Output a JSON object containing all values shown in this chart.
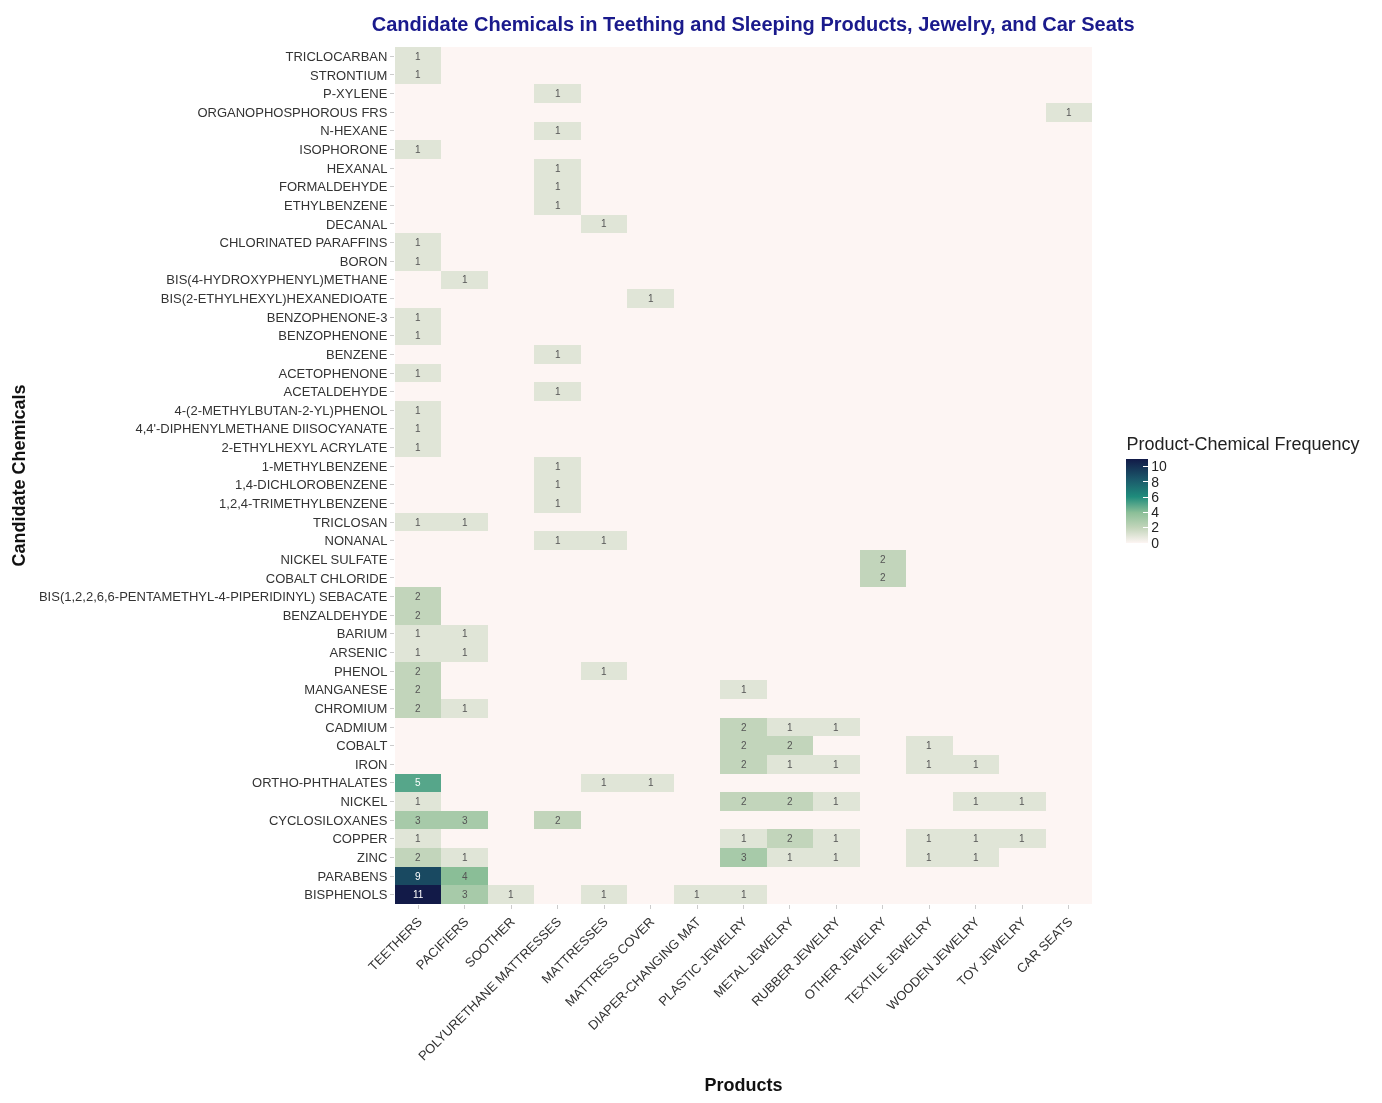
{
  "chart_data": {
    "type": "heatmap",
    "title": "Candidate Chemicals in Teething and Sleeping Products, Jewelry, and Car Seats",
    "xlabel": "Products",
    "ylabel": "Candidate Chemicals",
    "clabel": "Product-Chemical Frequency",
    "clim": [
      0,
      11
    ],
    "cticks": [
      0,
      2,
      4,
      6,
      8,
      10
    ],
    "data_labels": true,
    "categories": [
      "TEETHERS",
      "PACIFIERS",
      "SOOTHER",
      "POLYURETHANE MATTRESSES",
      "MATTRESSES",
      "MATTRESS COVER",
      "DIAPER-CHANGING MAT",
      "PLASTIC JEWELRY",
      "METAL JEWELRY",
      "RUBBER JEWELRY",
      "OTHER JEWELRY",
      "TEXTILE JEWELRY",
      "WOODEN JEWELRY",
      "TOY JEWELRY",
      "CAR SEATS"
    ],
    "y_categories": [
      "TRICLOCARBAN",
      "STRONTIUM",
      "P-XYLENE",
      "ORGANOPHOSPHOROUS FRS",
      "N-HEXANE",
      "ISOPHORONE",
      "HEXANAL",
      "FORMALDEHYDE",
      "ETHYLBENZENE",
      "DECANAL",
      "CHLORINATED PARAFFINS",
      "BORON",
      "BIS(4-HYDROXYPHENYL)METHANE",
      "BIS(2-ETHYLHEXYL)HEXANEDIOATE",
      "BENZOPHENONE-3",
      "BENZOPHENONE",
      "BENZENE",
      "ACETOPHENONE",
      "ACETALDEHYDE",
      "4-(2-METHYLBUTAN-2-YL)PHENOL",
      "4,4'-DIPHENYLMETHANE DIISOCYANATE",
      "2-ETHYLHEXYL ACRYLATE",
      "1-METHYLBENZENE",
      "1,4-DICHLOROBENZENE",
      "1,2,4-TRIMETHYLBENZENE",
      "TRICLOSAN",
      "NONANAL",
      "NICKEL SULFATE",
      "COBALT CHLORIDE",
      "BIS(1,2,2,6,6-PENTAMETHYL-4-PIPERIDINYL) SEBACATE",
      "BENZALDEHYDE",
      "BARIUM",
      "ARSENIC",
      "PHENOL",
      "MANGANESE",
      "CHROMIUM",
      "CADMIUM",
      "COBALT",
      "IRON",
      "ORTHO-PHTHALATES",
      "NICKEL",
      "CYCLOSILOXANES",
      "COPPER",
      "ZINC",
      "PARABENS",
      "BISPHENOLS"
    ],
    "cells": [
      [
        1,
        null,
        null,
        null,
        null,
        null,
        null,
        null,
        null,
        null,
        null,
        null,
        null,
        null,
        null
      ],
      [
        1,
        null,
        null,
        null,
        null,
        null,
        null,
        null,
        null,
        null,
        null,
        null,
        null,
        null,
        null
      ],
      [
        null,
        null,
        null,
        1,
        null,
        null,
        null,
        null,
        null,
        null,
        null,
        null,
        null,
        null,
        null
      ],
      [
        null,
        null,
        null,
        null,
        null,
        null,
        null,
        null,
        null,
        null,
        null,
        null,
        null,
        null,
        1
      ],
      [
        null,
        null,
        null,
        1,
        null,
        null,
        null,
        null,
        null,
        null,
        null,
        null,
        null,
        null,
        null
      ],
      [
        1,
        null,
        null,
        null,
        null,
        null,
        null,
        null,
        null,
        null,
        null,
        null,
        null,
        null,
        null
      ],
      [
        null,
        null,
        null,
        1,
        null,
        null,
        null,
        null,
        null,
        null,
        null,
        null,
        null,
        null,
        null
      ],
      [
        null,
        null,
        null,
        1,
        null,
        null,
        null,
        null,
        null,
        null,
        null,
        null,
        null,
        null,
        null
      ],
      [
        null,
        null,
        null,
        1,
        null,
        null,
        null,
        null,
        null,
        null,
        null,
        null,
        null,
        null,
        null
      ],
      [
        null,
        null,
        null,
        null,
        1,
        null,
        null,
        null,
        null,
        null,
        null,
        null,
        null,
        null,
        null
      ],
      [
        1,
        null,
        null,
        null,
        null,
        null,
        null,
        null,
        null,
        null,
        null,
        null,
        null,
        null,
        null
      ],
      [
        1,
        null,
        null,
        null,
        null,
        null,
        null,
        null,
        null,
        null,
        null,
        null,
        null,
        null,
        null
      ],
      [
        null,
        1,
        null,
        null,
        null,
        null,
        null,
        null,
        null,
        null,
        null,
        null,
        null,
        null,
        null
      ],
      [
        null,
        null,
        null,
        null,
        null,
        1,
        null,
        null,
        null,
        null,
        null,
        null,
        null,
        null,
        null
      ],
      [
        1,
        null,
        null,
        null,
        null,
        null,
        null,
        null,
        null,
        null,
        null,
        null,
        null,
        null,
        null
      ],
      [
        1,
        null,
        null,
        null,
        null,
        null,
        null,
        null,
        null,
        null,
        null,
        null,
        null,
        null,
        null
      ],
      [
        null,
        null,
        null,
        1,
        null,
        null,
        null,
        null,
        null,
        null,
        null,
        null,
        null,
        null,
        null
      ],
      [
        1,
        null,
        null,
        null,
        null,
        null,
        null,
        null,
        null,
        null,
        null,
        null,
        null,
        null,
        null
      ],
      [
        null,
        null,
        null,
        1,
        null,
        null,
        null,
        null,
        null,
        null,
        null,
        null,
        null,
        null,
        null
      ],
      [
        1,
        null,
        null,
        null,
        null,
        null,
        null,
        null,
        null,
        null,
        null,
        null,
        null,
        null,
        null
      ],
      [
        1,
        null,
        null,
        null,
        null,
        null,
        null,
        null,
        null,
        null,
        null,
        null,
        null,
        null,
        null
      ],
      [
        1,
        null,
        null,
        null,
        null,
        null,
        null,
        null,
        null,
        null,
        null,
        null,
        null,
        null,
        null
      ],
      [
        null,
        null,
        null,
        1,
        null,
        null,
        null,
        null,
        null,
        null,
        null,
        null,
        null,
        null,
        null
      ],
      [
        null,
        null,
        null,
        1,
        null,
        null,
        null,
        null,
        null,
        null,
        null,
        null,
        null,
        null,
        null
      ],
      [
        null,
        null,
        null,
        1,
        null,
        null,
        null,
        null,
        null,
        null,
        null,
        null,
        null,
        null,
        null
      ],
      [
        1,
        1,
        null,
        null,
        null,
        null,
        null,
        null,
        null,
        null,
        null,
        null,
        null,
        null,
        null
      ],
      [
        null,
        null,
        null,
        1,
        1,
        null,
        null,
        null,
        null,
        null,
        null,
        null,
        null,
        null,
        null
      ],
      [
        null,
        null,
        null,
        null,
        null,
        null,
        null,
        null,
        null,
        null,
        2,
        null,
        null,
        null,
        null
      ],
      [
        null,
        null,
        null,
        null,
        null,
        null,
        null,
        null,
        null,
        null,
        2,
        null,
        null,
        null,
        null
      ],
      [
        2,
        null,
        null,
        null,
        null,
        null,
        null,
        null,
        null,
        null,
        null,
        null,
        null,
        null,
        null
      ],
      [
        2,
        null,
        null,
        null,
        null,
        null,
        null,
        null,
        null,
        null,
        null,
        null,
        null,
        null,
        null
      ],
      [
        1,
        1,
        null,
        null,
        null,
        null,
        null,
        null,
        null,
        null,
        null,
        null,
        null,
        null,
        null
      ],
      [
        1,
        1,
        null,
        null,
        null,
        null,
        null,
        null,
        null,
        null,
        null,
        null,
        null,
        null,
        null
      ],
      [
        2,
        null,
        null,
        null,
        1,
        null,
        null,
        null,
        null,
        null,
        null,
        null,
        null,
        null,
        null
      ],
      [
        2,
        null,
        null,
        null,
        null,
        null,
        null,
        1,
        null,
        null,
        null,
        null,
        null,
        null,
        null
      ],
      [
        2,
        1,
        null,
        null,
        null,
        null,
        null,
        null,
        null,
        null,
        null,
        null,
        null,
        null,
        null
      ],
      [
        null,
        null,
        null,
        null,
        null,
        null,
        null,
        2,
        1,
        1,
        null,
        null,
        null,
        null,
        null
      ],
      [
        null,
        null,
        null,
        null,
        null,
        null,
        null,
        2,
        2,
        null,
        null,
        1,
        null,
        null,
        null
      ],
      [
        null,
        null,
        null,
        null,
        null,
        null,
        null,
        2,
        1,
        1,
        null,
        1,
        1,
        null,
        null
      ],
      [
        5,
        null,
        null,
        null,
        1,
        1,
        null,
        null,
        null,
        null,
        null,
        null,
        null,
        null,
        null
      ],
      [
        1,
        null,
        null,
        null,
        null,
        null,
        null,
        2,
        2,
        1,
        null,
        null,
        1,
        1,
        null
      ],
      [
        3,
        3,
        null,
        2,
        null,
        null,
        null,
        null,
        null,
        null,
        null,
        null,
        null,
        null,
        null
      ],
      [
        1,
        null,
        null,
        null,
        null,
        null,
        null,
        1,
        2,
        1,
        null,
        1,
        1,
        1,
        null
      ],
      [
        2,
        1,
        null,
        null,
        null,
        null,
        null,
        3,
        1,
        1,
        null,
        1,
        1,
        null,
        null
      ],
      [
        9,
        4,
        null,
        null,
        null,
        null,
        null,
        null,
        null,
        null,
        null,
        null,
        null,
        null,
        null
      ],
      [
        11,
        3,
        1,
        null,
        1,
        null,
        1,
        1,
        null,
        null,
        null,
        null,
        null,
        null,
        null
      ]
    ]
  }
}
